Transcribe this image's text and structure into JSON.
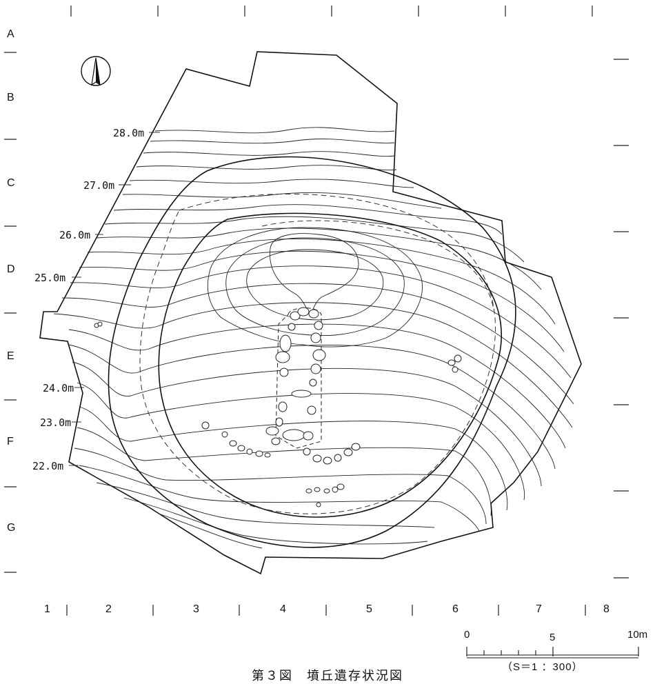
{
  "figure": {
    "caption": "第３図　墳丘遺存状況図"
  },
  "grid": {
    "rows": [
      "A",
      "B",
      "C",
      "D",
      "E",
      "F",
      "G"
    ],
    "columns": [
      "1",
      "2",
      "3",
      "4",
      "5",
      "6",
      "7",
      "8"
    ]
  },
  "contour_labels": [
    "28.0m",
    "27.0m",
    "26.0m",
    "25.0m",
    "24.0m",
    "23.0m",
    "22.0m"
  ],
  "scale_bar": {
    "ticks": [
      "0",
      "5",
      "10m"
    ],
    "ratio": "（S＝1 ：300）"
  },
  "north_arrow": {
    "icon": "north-arrow-icon"
  }
}
